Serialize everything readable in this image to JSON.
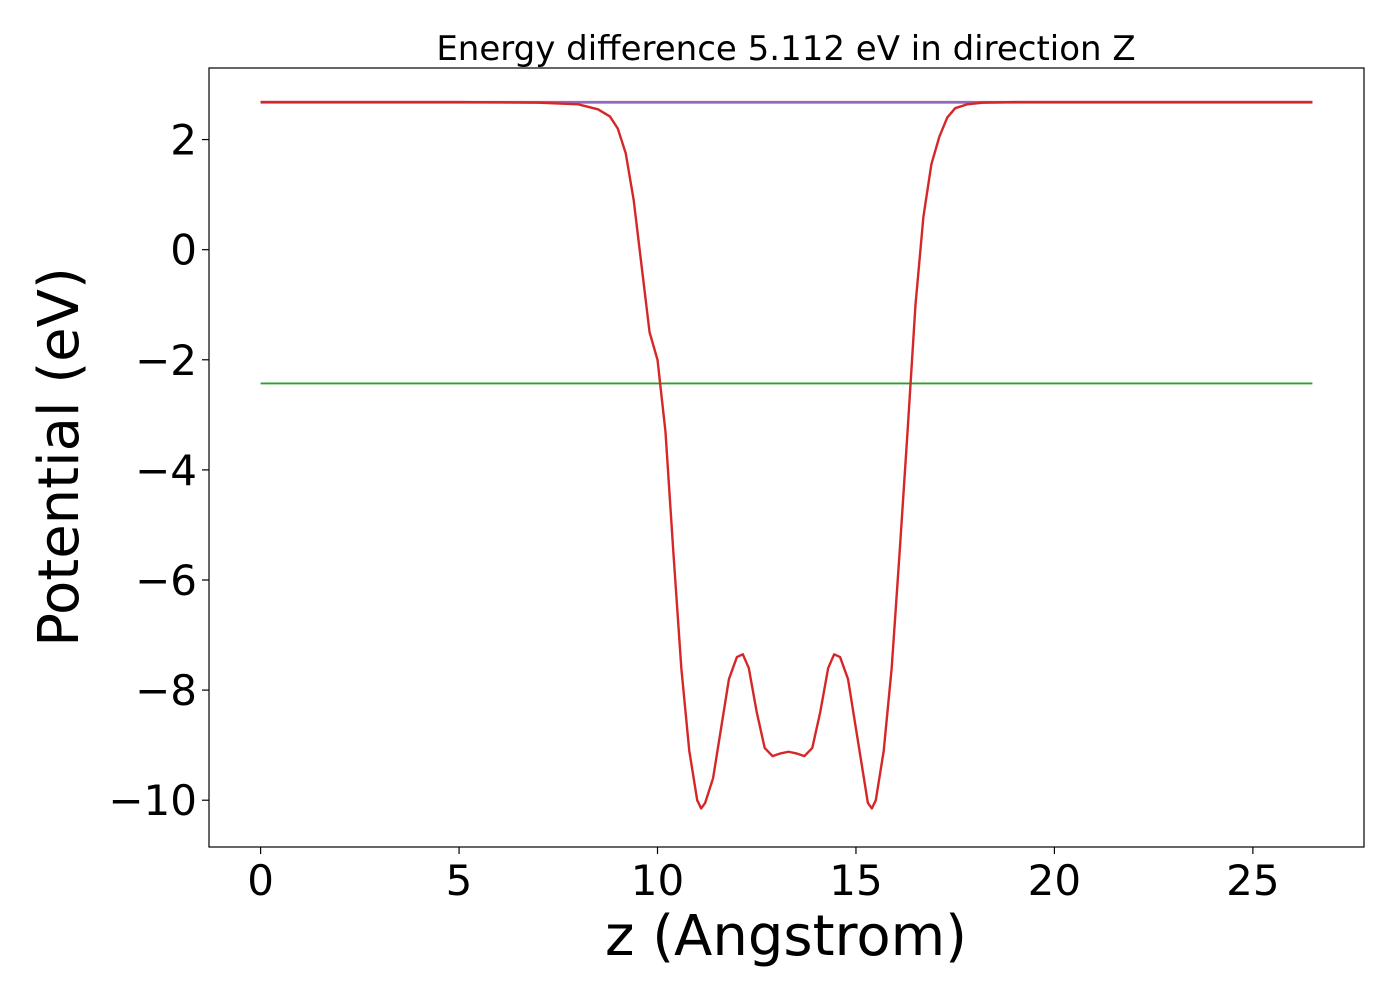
{
  "chart_data": {
    "type": "line",
    "title": "Energy difference 5.112 eV in direction Z",
    "xlabel": "z (Angstrom)",
    "ylabel": "Potential (eV)",
    "xlim": [
      -1.3,
      27.8
    ],
    "ylim": [
      -10.85,
      3.3
    ],
    "xticks": [
      0,
      5,
      10,
      15,
      20,
      25
    ],
    "xtick_labels": [
      "0",
      "5",
      "10",
      "15",
      "20",
      "25"
    ],
    "yticks": [
      2,
      0,
      -2,
      -4,
      -6,
      -8,
      -10
    ],
    "ytick_labels": [
      "2",
      "0",
      "−2",
      "−4",
      "−6",
      "−8",
      "−10"
    ],
    "grid": false,
    "legend": "none",
    "series": [
      {
        "style": "horizontal-line",
        "color": "#1f77b4",
        "x": [
          0,
          26.5
        ],
        "y": [
          2.67,
          2.67
        ]
      },
      {
        "style": "horizontal-line",
        "color": "#2ca02c",
        "x": [
          0,
          26.5
        ],
        "y": [
          -2.43,
          -2.43
        ]
      },
      {
        "style": "line",
        "color": "#9467bd",
        "x": [
          0,
          7.5,
          18.5,
          26.5
        ],
        "y": [
          2.68,
          2.68,
          2.68,
          2.68
        ]
      },
      {
        "style": "line",
        "color": "#d62728",
        "x": [
          0,
          5.0,
          7.0,
          8.0,
          8.5,
          8.8,
          9.0,
          9.2,
          9.4,
          9.6,
          9.8,
          10.0,
          10.2,
          10.4,
          10.6,
          10.8,
          11.0,
          11.1,
          11.2,
          11.4,
          11.6,
          11.8,
          12.0,
          12.15,
          12.3,
          12.5,
          12.7,
          12.9,
          13.1,
          13.3,
          13.5,
          13.7,
          13.9,
          14.1,
          14.3,
          14.45,
          14.6,
          14.8,
          15.0,
          15.2,
          15.3,
          15.4,
          15.5,
          15.7,
          15.9,
          16.1,
          16.3,
          16.5,
          16.7,
          16.9,
          17.1,
          17.3,
          17.5,
          17.8,
          18.2,
          19.0,
          21.0,
          26.5
        ],
        "y": [
          2.68,
          2.68,
          2.67,
          2.64,
          2.55,
          2.42,
          2.2,
          1.75,
          0.9,
          -0.3,
          -1.5,
          -2.0,
          -3.3,
          -5.5,
          -7.6,
          -9.1,
          -10.0,
          -10.15,
          -10.05,
          -9.6,
          -8.7,
          -7.8,
          -7.4,
          -7.35,
          -7.6,
          -8.4,
          -9.05,
          -9.2,
          -9.15,
          -9.12,
          -9.15,
          -9.2,
          -9.05,
          -8.4,
          -7.6,
          -7.35,
          -7.4,
          -7.8,
          -8.7,
          -9.6,
          -10.05,
          -10.15,
          -10.0,
          -9.1,
          -7.6,
          -5.5,
          -3.3,
          -1.0,
          0.6,
          1.55,
          2.05,
          2.4,
          2.57,
          2.64,
          2.67,
          2.68,
          2.68,
          2.68
        ]
      }
    ]
  }
}
